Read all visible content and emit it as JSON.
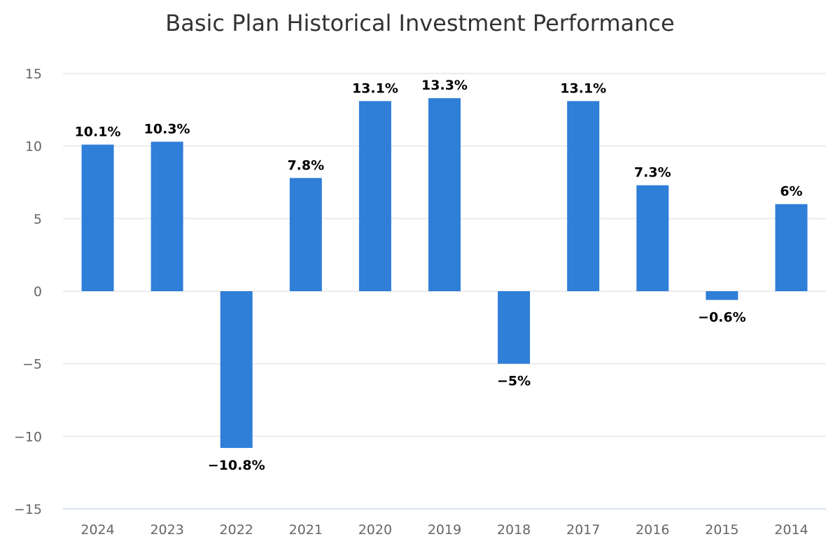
{
  "chart_data": {
    "type": "bar",
    "title": "Basic Plan Historical Investment Performance",
    "xlabel": "",
    "ylabel": "",
    "categories": [
      "2024",
      "2023",
      "2022",
      "2021",
      "2020",
      "2019",
      "2018",
      "2017",
      "2016",
      "2015",
      "2014"
    ],
    "values": [
      10.1,
      10.3,
      -10.8,
      7.8,
      13.1,
      13.3,
      -5,
      13.1,
      7.3,
      -0.6,
      6
    ],
    "data_labels": [
      "10.1%",
      "10.3%",
      "−10.8%",
      "7.8%",
      "13.1%",
      "13.3%",
      "−5%",
      "13.1%",
      "7.3%",
      "−0.6%",
      "6%"
    ],
    "ylim": [
      -15,
      15
    ],
    "yticks": [
      15,
      10,
      5,
      0,
      -5,
      -10,
      -15
    ],
    "ytick_labels": [
      "15",
      "10",
      "5",
      "0",
      "−5",
      "−10",
      "−15"
    ],
    "grid": true,
    "legend": "none",
    "bar_color": "#2f7ed8"
  }
}
